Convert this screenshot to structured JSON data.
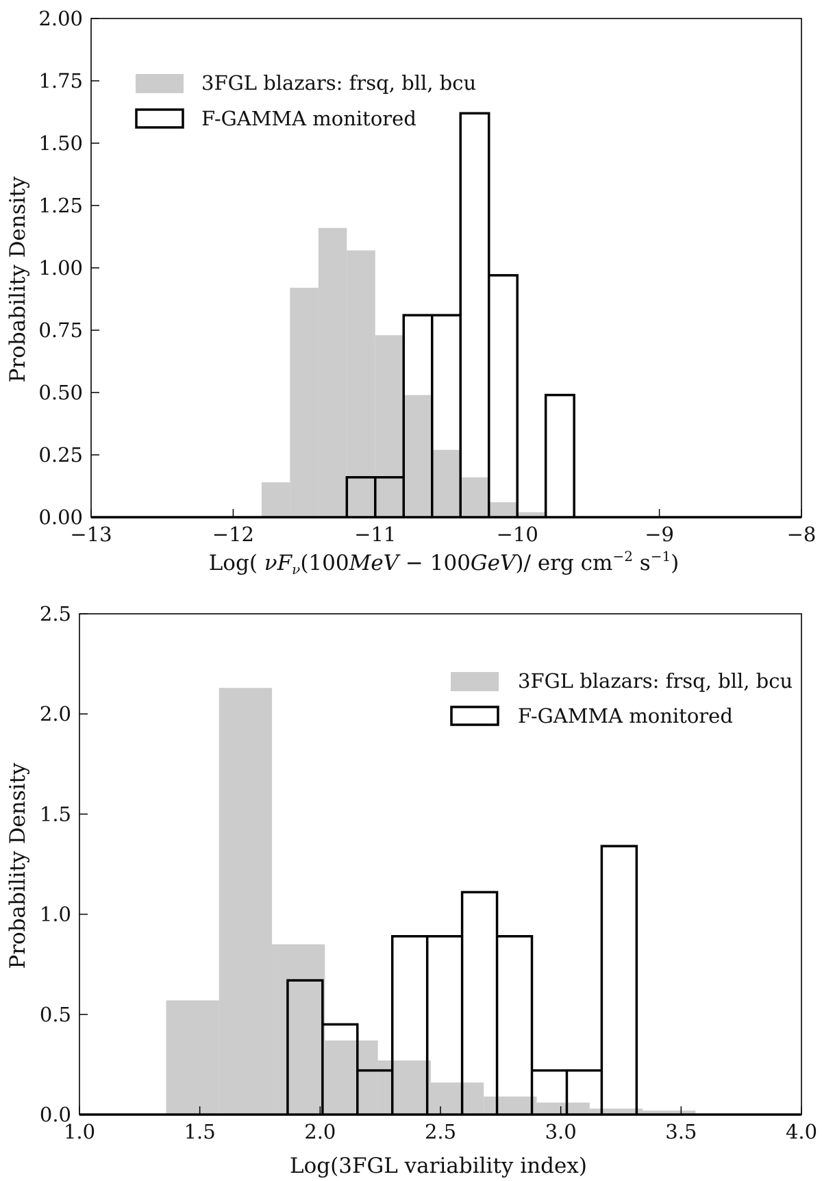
{
  "colors": {
    "background": "#ffffff",
    "blazars_fill": "#cccccc",
    "fgamma_stroke": "#000000",
    "axis": "#000000"
  },
  "chart_data": [
    {
      "type": "bar",
      "histogram": true,
      "title": "",
      "xlabel": "Log( νFν(100MeV − 100GeV)/ erg cm⁻² s⁻¹)",
      "xlabel_parts": {
        "pre": "Log( ",
        "nu": "ν",
        "F": "F",
        "F_sub": "ν",
        "open": "(100",
        "mev": "MeV",
        "minus": " − 100",
        "gev": "GeV",
        "close": ")/ erg cm",
        "exp1": "−2",
        "s": " s",
        "exp2": "−1",
        "end": ")"
      },
      "ylabel": "Probability Density",
      "xlim": [
        -13,
        -8
      ],
      "ylim": [
        0,
        2.0
      ],
      "xticks": [
        -13,
        -12,
        -11,
        -10,
        -9,
        -8
      ],
      "xtick_labels": [
        "−13",
        "−12",
        "−11",
        "−10",
        "−9",
        "−8"
      ],
      "yticks": [
        0,
        0.25,
        0.5,
        0.75,
        1.0,
        1.25,
        1.5,
        1.75,
        2.0
      ],
      "ytick_labels": [
        "0.00",
        "0.25",
        "0.50",
        "0.75",
        "1.00",
        "1.25",
        "1.50",
        "1.75",
        "2.00"
      ],
      "legend_position": "top-left",
      "series": [
        {
          "name": "3FGL blazars: frsq, bll, bcu",
          "style": "filled",
          "bin_edges": [
            -11.8,
            -11.6,
            -11.4,
            -11.2,
            -11.0,
            -10.8,
            -10.6,
            -10.4,
            -10.2,
            -10.0,
            -9.8
          ],
          "values": [
            0.14,
            0.92,
            1.16,
            1.07,
            0.73,
            0.49,
            0.27,
            0.16,
            0.06,
            0.02
          ]
        },
        {
          "name": "F-GAMMA monitored",
          "style": "step",
          "bin_edges": [
            -11.2,
            -11.0,
            -10.8,
            -10.6,
            -10.4,
            -10.2,
            -10.0,
            -9.8,
            -9.6
          ],
          "values": [
            0.16,
            0.16,
            0.81,
            0.81,
            1.62,
            0.97,
            0.0,
            0.49
          ]
        }
      ]
    },
    {
      "type": "bar",
      "histogram": true,
      "title": "",
      "xlabel": "Log(3FGL variability index)",
      "ylabel": "Probability Density",
      "xlim": [
        1.0,
        4.0
      ],
      "ylim": [
        0,
        2.5
      ],
      "xticks": [
        1.0,
        1.5,
        2.0,
        2.5,
        3.0,
        3.5,
        4.0
      ],
      "xtick_labels": [
        "1.0",
        "1.5",
        "2.0",
        "2.5",
        "3.0",
        "3.5",
        "4.0"
      ],
      "yticks": [
        0,
        0.5,
        1.0,
        1.5,
        2.0,
        2.5
      ],
      "ytick_labels": [
        "0.0",
        "0.5",
        "1.0",
        "1.5",
        "2.0",
        "2.5"
      ],
      "legend_position": "top-right",
      "series": [
        {
          "name": "3FGL blazars: frsq, bll, bcu",
          "style": "filled",
          "bin_edges": [
            1.36,
            1.58,
            1.8,
            2.02,
            2.24,
            2.46,
            2.68,
            2.9,
            3.12,
            3.34,
            3.56
          ],
          "values": [
            0.57,
            2.13,
            0.85,
            0.37,
            0.27,
            0.16,
            0.09,
            0.06,
            0.03,
            0.02
          ]
        },
        {
          "name": "F-GAMMA monitored",
          "style": "step",
          "bin_edges": [
            1.865,
            2.01,
            2.155,
            2.3,
            2.445,
            2.59,
            2.735,
            2.88,
            3.025,
            3.17,
            3.315
          ],
          "values": [
            0.67,
            0.45,
            0.22,
            0.89,
            0.89,
            1.11,
            0.89,
            0.22,
            0.22,
            1.34
          ]
        }
      ]
    }
  ]
}
